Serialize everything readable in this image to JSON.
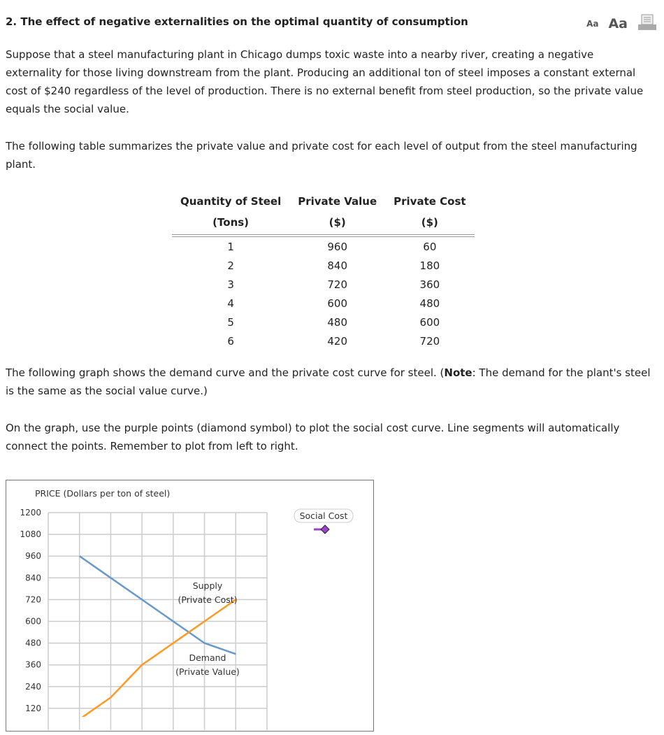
{
  "title": "2. The effect of negative externalities on the optimal quantity of consumption",
  "tools": {
    "small_font": "Aa",
    "large_font": "Aa",
    "print_icon": "printer-icon"
  },
  "paragraphs": [
    "Suppose that a steel manufacturing plant in Chicago dumps toxic waste into a nearby river, creating a negative externality for those living downstream from the plant. Producing an additional ton of steel imposes a constant external cost of $240 regardless of the level of production. There is no external benefit from steel production, so the private value equals the social value.",
    "The following table summarizes the private value and private cost for each level of output from the steel manufacturing plant."
  ],
  "graph_intro": {
    "before": "The following graph shows the demand curve and the private cost curve for steel. (",
    "note": "Note",
    "after": ": The demand for the plant's steel is the same as the social value curve.)"
  },
  "instructions": "On the graph, use the purple points (diamond symbol) to plot the social cost curve. Line segments will automatically connect the points. Remember to plot from left to right.",
  "table": {
    "headers": [
      [
        "Quantity of Steel",
        "(Tons)"
      ],
      [
        "Private Value",
        "($)"
      ],
      [
        "Private Cost",
        "($)"
      ]
    ],
    "rows": [
      [
        "1",
        "960",
        "60"
      ],
      [
        "2",
        "840",
        "180"
      ],
      [
        "3",
        "720",
        "360"
      ],
      [
        "4",
        "600",
        "480"
      ],
      [
        "5",
        "480",
        "600"
      ],
      [
        "6",
        "420",
        "720"
      ]
    ]
  },
  "chart_data": {
    "type": "line",
    "ylabel": "PRICE (Dollars per ton of steel)",
    "ylim": [
      0,
      1200
    ],
    "xlim": [
      0,
      7
    ],
    "yticks": [
      120,
      240,
      360,
      480,
      600,
      720,
      840,
      960,
      1080,
      1200
    ],
    "grid": true,
    "series": [
      {
        "name": "Demand (Private Value)",
        "label_lines": [
          "Demand",
          "(Private Value)"
        ],
        "color": "#6699cc",
        "x": [
          1,
          2,
          3,
          4,
          5,
          6
        ],
        "y": [
          960,
          840,
          720,
          600,
          480,
          420
        ]
      },
      {
        "name": "Supply (Private Cost)",
        "label_lines": [
          "Supply",
          "(Private Cost)"
        ],
        "color": "#ff9922",
        "x": [
          1,
          2,
          3,
          4,
          5,
          6
        ],
        "y": [
          60,
          180,
          360,
          480,
          600,
          720
        ]
      }
    ],
    "legend": {
      "label": "Social Cost",
      "color": "#9944cc",
      "marker": "diamond",
      "placement": "top-right"
    }
  }
}
